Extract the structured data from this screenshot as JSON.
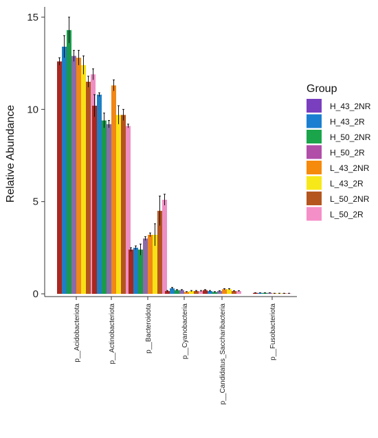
{
  "chart_data": {
    "type": "bar",
    "ylabel": "Relative Abundance",
    "xlabel": "",
    "ylim": [
      0,
      15
    ],
    "yticks": [
      0,
      5,
      10,
      15
    ],
    "grid": false,
    "legend_title": "Group",
    "legend_position": "right",
    "categories": [
      "p__Acidobacteriota",
      "p__Actinobacteriota",
      "p__Bacteroidota",
      "p__Cyanobacteria",
      "p__Candidatus_Saccharibacteria",
      "p__Fusobacteriota"
    ],
    "series": [
      {
        "name": "H_43_2NR",
        "color": "#a8271f",
        "values": [
          12.6,
          10.2,
          2.4,
          0.15,
          0.2,
          0.05
        ],
        "errors": [
          0.2,
          0.6,
          0.1,
          0.03,
          0.03,
          0.01
        ]
      },
      {
        "name": "H_43_2R",
        "color": "#1f7fc4",
        "values": [
          13.4,
          10.8,
          2.5,
          0.3,
          0.15,
          0.05
        ],
        "errors": [
          0.6,
          0.1,
          0.1,
          0.05,
          0.03,
          0.01
        ]
      },
      {
        "name": "H_50_2NR",
        "color": "#1a9a4b",
        "values": [
          14.3,
          9.4,
          2.4,
          0.2,
          0.1,
          0.05
        ],
        "errors": [
          0.7,
          0.4,
          0.3,
          0.03,
          0.02,
          0.01
        ]
      },
      {
        "name": "H_50_2R",
        "color": "#8b6aa8",
        "values": [
          12.9,
          9.2,
          3.0,
          0.2,
          0.15,
          0.05
        ],
        "errors": [
          0.3,
          0.2,
          0.1,
          0.03,
          0.02,
          0.01
        ]
      },
      {
        "name": "L_43_2NR",
        "color": "#f08716",
        "values": [
          12.8,
          11.3,
          3.2,
          0.1,
          0.25,
          0.02
        ],
        "errors": [
          0.4,
          0.3,
          0.1,
          0.02,
          0.03,
          0.01
        ]
      },
      {
        "name": "L_43_2R",
        "color": "#f7e115",
        "values": [
          12.4,
          9.7,
          3.2,
          0.15,
          0.25,
          0.02
        ],
        "errors": [
          0.5,
          0.5,
          0.6,
          0.03,
          0.03,
          0.01
        ]
      },
      {
        "name": "L_50_2NR",
        "color": "#b3541e",
        "values": [
          11.5,
          9.7,
          4.5,
          0.15,
          0.15,
          0.02
        ],
        "errors": [
          0.3,
          0.3,
          0.8,
          0.03,
          0.02,
          0.01
        ]
      },
      {
        "name": "L_50_2R",
        "color": "#ee8fc3",
        "values": [
          11.9,
          9.1,
          5.1,
          0.15,
          0.15,
          0.02
        ],
        "errors": [
          0.3,
          0.1,
          0.3,
          0.03,
          0.02,
          0.01
        ]
      }
    ]
  },
  "legend_colors": [
    "#ff1a1a",
    "#7a3fbf",
    "#1a7fd0",
    "#1aa54a",
    "#b04ea8",
    "#f58a0b",
    "#f7e81a",
    "#b5561f",
    "#f58fc8"
  ]
}
